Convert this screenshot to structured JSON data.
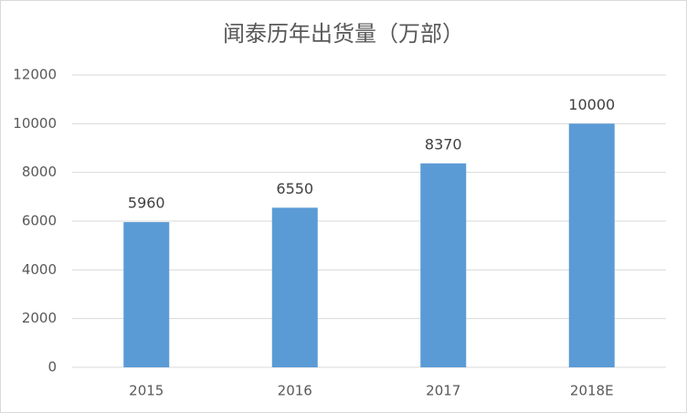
{
  "chart_data": {
    "type": "bar",
    "title": "闻泰历年出货量（万部）",
    "categories": [
      "2015",
      "2016",
      "2017",
      "2018E"
    ],
    "values": [
      5960,
      6550,
      8370,
      10000
    ],
    "color": "#5b9bd5",
    "ylim": [
      0,
      12000
    ],
    "yticks": [
      0,
      2000,
      4000,
      6000,
      8000,
      10000,
      12000
    ],
    "grid": true
  }
}
